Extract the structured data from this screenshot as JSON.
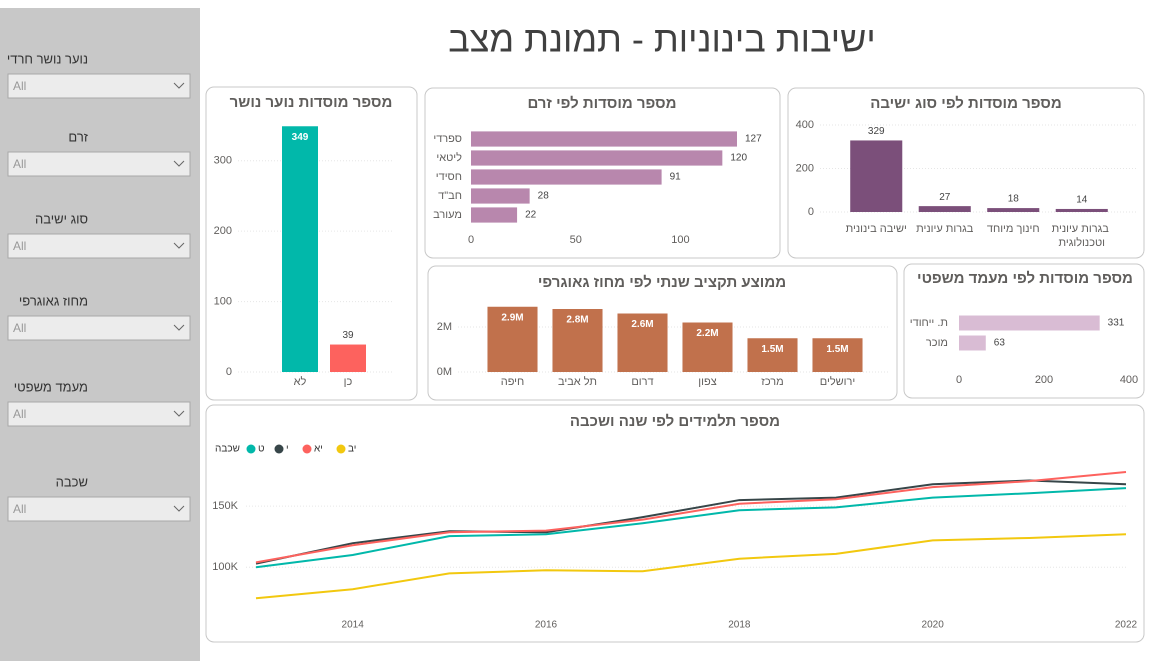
{
  "title": "ישיבות בינוניות - תמונת מצב",
  "slicers": [
    {
      "label": "נוער נושר חרדי",
      "value": "All"
    },
    {
      "label": "זרם",
      "value": "All"
    },
    {
      "label": "סוג ישיבה",
      "value": "All"
    },
    {
      "label": "מחוז גאוגרפי",
      "value": "All"
    },
    {
      "label": "מעמד משפטי",
      "value": "All"
    },
    {
      "label": "שכבה",
      "value": "All"
    }
  ],
  "chart_data": [
    {
      "type": "bar",
      "orientation": "vertical",
      "title": "מספר מוסדות נוער נושר",
      "categories": [
        "לא",
        "כן"
      ],
      "values": [
        349,
        39
      ],
      "colors": [
        "#01b8aa",
        "#fd625e"
      ],
      "ylim": [
        0,
        365
      ],
      "yticks": [
        0,
        100,
        200,
        300
      ],
      "grid": true
    },
    {
      "type": "bar",
      "orientation": "horizontal",
      "title": "מספר מוסדות לפי זרם",
      "categories": [
        "ספרדי",
        "ליטאי",
        "חסידי",
        "חב\"ד",
        "מעורב"
      ],
      "values": [
        127,
        120,
        91,
        28,
        22
      ],
      "color": "#b887ad",
      "xlim": [
        0,
        127
      ],
      "xticks": [
        0,
        50,
        100
      ],
      "grid": false
    },
    {
      "type": "bar",
      "orientation": "vertical",
      "title": "מספר מוסדות לפי סוג ישיבה",
      "categories": [
        "ישיבה בינונית",
        "בגרות עיונית",
        "חינוך מיוחד",
        "בגרות עיונית וטכנולוגית"
      ],
      "values": [
        329,
        27,
        18,
        14
      ],
      "color": "#7b4f7a",
      "ylim": [
        0,
        400
      ],
      "yticks": [
        0,
        200,
        400
      ],
      "grid": true
    },
    {
      "type": "bar",
      "orientation": "vertical",
      "title": "ממוצע תקציב שנתי לפי מחוז גאוגרפי",
      "categories": [
        "חיפה",
        "תל אביב",
        "דרום",
        "צפון",
        "מרכז",
        "ירושלים"
      ],
      "values": [
        2900000,
        2800000,
        2600000,
        2200000,
        1500000,
        1500000
      ],
      "value_labels": [
        "2.9M",
        "2.8M",
        "2.6M",
        "2.2M",
        "1.5M",
        "1.5M"
      ],
      "color": "#c1714c",
      "ylim": [
        0,
        3000000
      ],
      "yticks": [
        {
          "value": 0,
          "label": "0M"
        },
        {
          "value": 2000000,
          "label": "2M"
        }
      ],
      "grid": true
    },
    {
      "type": "bar",
      "orientation": "horizontal",
      "title": "מספר מוסדות לפי מעמד משפטי",
      "categories": [
        "ת. ייחודי",
        "מוכר"
      ],
      "values": [
        331,
        63
      ],
      "color": "#d9bcd4",
      "xlim": [
        0,
        400
      ],
      "xticks": [
        0,
        200,
        400
      ],
      "grid": false
    },
    {
      "type": "line",
      "title": "מספר תלמידים לפי שנה ושכבה",
      "legend_title": "שכבה",
      "x": [
        2013,
        2014,
        2015,
        2016,
        2017,
        2018,
        2019,
        2020,
        2021,
        2022
      ],
      "xlim": [
        2013,
        2022
      ],
      "xticks": [
        2014,
        2016,
        2018,
        2020,
        2022
      ],
      "ylim": [
        65000,
        196000
      ],
      "yticks": [
        {
          "value": 100000,
          "label": "100K"
        },
        {
          "value": 150000,
          "label": "150K"
        }
      ],
      "grid": true,
      "series": [
        {
          "name": "ט",
          "color": "#01b8aa",
          "values": [
            100000,
            110000,
            125500,
            127000,
            136000,
            146700,
            149000,
            157000,
            160600,
            164800
          ]
        },
        {
          "name": "י",
          "color": "#374649",
          "values": [
            103000,
            119700,
            129500,
            128700,
            141000,
            155000,
            157000,
            168000,
            171000,
            168000
          ]
        },
        {
          "name": "יא",
          "color": "#fd625e",
          "values": [
            104000,
            118000,
            128700,
            130000,
            139000,
            152000,
            155700,
            165600,
            170500,
            178000
          ]
        },
        {
          "name": "יב",
          "color": "#f2c80f",
          "values": [
            74600,
            82000,
            95000,
            97500,
            96700,
            107000,
            111000,
            122000,
            124000,
            127000
          ]
        }
      ]
    }
  ]
}
